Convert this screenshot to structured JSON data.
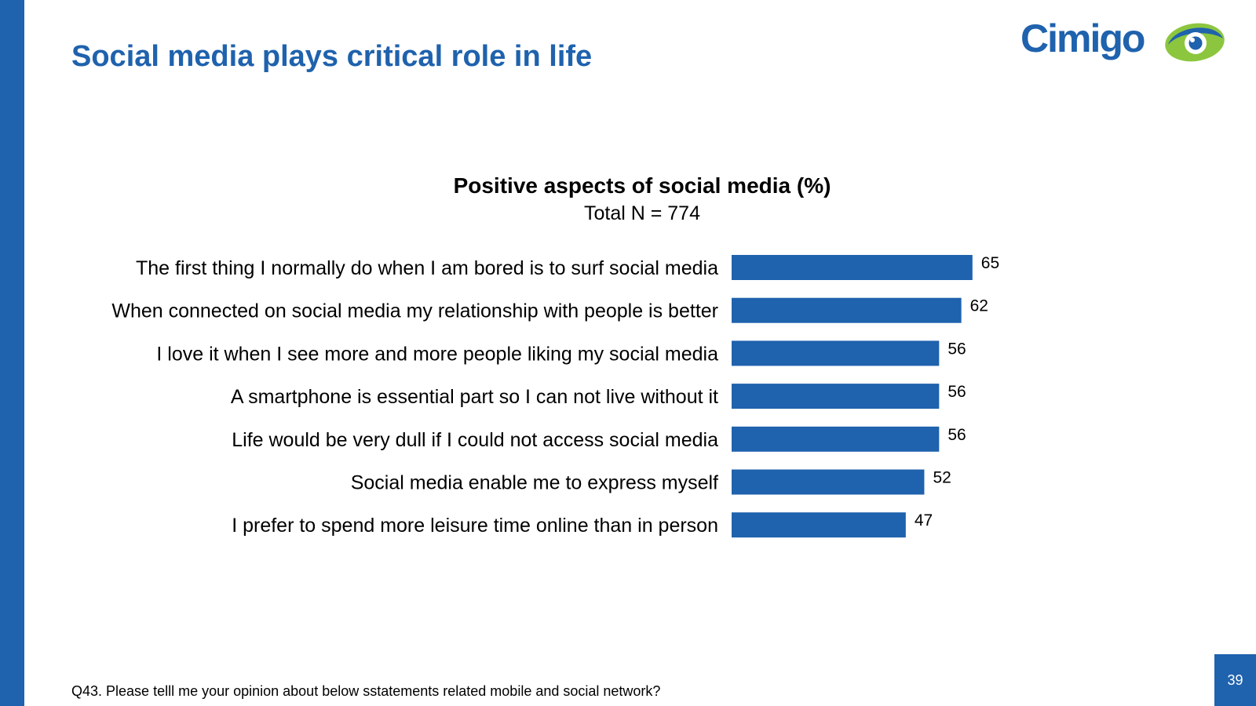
{
  "slide": {
    "title": "Social media plays critical role in life",
    "footnote": "Q43. Please telll me your opinion about below sstatements related mobile and social network?",
    "page_number": "39",
    "logo_text": "Cimigo"
  },
  "colors": {
    "brand_blue": "#1f62ad",
    "logo_green": "#8cc63f",
    "bar": "#1f62ad"
  },
  "chart_data": {
    "type": "bar",
    "orientation": "horizontal",
    "title": "Positive aspects of social media (%)",
    "subtitle": "Total N = 774",
    "categories": [
      "The first thing I normally do when I am bored is to surf social media",
      "When connected on social media my relationship with people is better",
      "I love it when I see more and more people liking my social media",
      "A smartphone is essential part so I can not live without it",
      "Life would be very dull if I could not access social media",
      "Social media enable me to express myself",
      "I prefer to spend more leisure time online than in person"
    ],
    "values": [
      65,
      62,
      56,
      56,
      56,
      52,
      47
    ],
    "xlim": [
      0,
      100
    ],
    "data_labels": true,
    "grid": false,
    "legend": "none"
  }
}
